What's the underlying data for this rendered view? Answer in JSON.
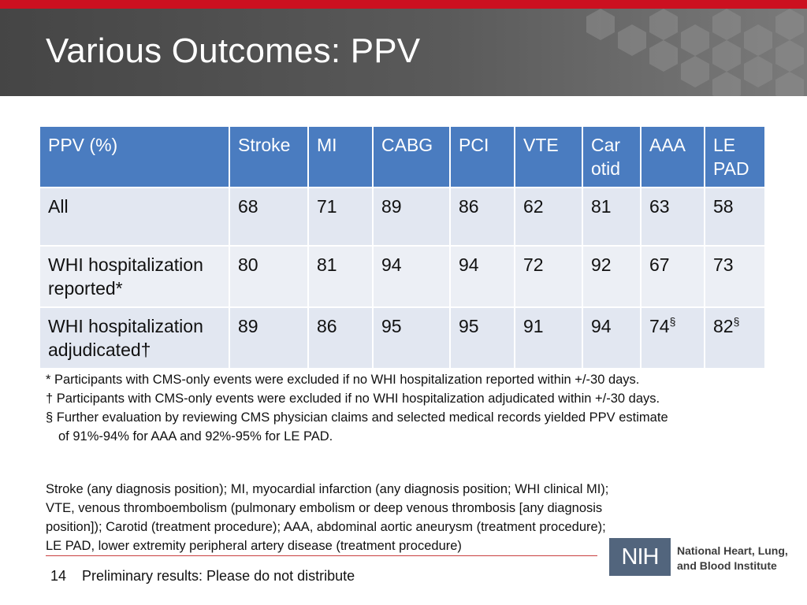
{
  "slide": {
    "title": "Various Outcomes:  PPV"
  },
  "table": {
    "headers": [
      "PPV (%)",
      "Stroke",
      "MI",
      "CABG",
      "PCI",
      "VTE",
      "Car otid",
      "AAA",
      "LE PAD"
    ],
    "rows": [
      {
        "label": "All",
        "values": [
          "68",
          "71",
          "89",
          "86",
          "62",
          "81",
          "63",
          "58"
        ]
      },
      {
        "label": "WHI hospitalization reported*",
        "values": [
          "80",
          "81",
          "94",
          "94",
          "72",
          "92",
          "67",
          "73"
        ]
      },
      {
        "label": "WHI hospitalization adjudicated†",
        "values": [
          "89",
          "86",
          "95",
          "95",
          "91",
          "94",
          "74",
          "82"
        ],
        "marks": {
          "aaa": "§",
          "lepad": "§"
        }
      }
    ]
  },
  "footnotes": {
    "star": "* Participants with CMS-only events were excluded if no WHI hospitalization reported within +/-30 days.",
    "dagger": "† Participants with CMS-only events were excluded if no WHI hospitalization adjudicated within +/-30 days.",
    "section_line1": "§ Further evaluation by reviewing CMS physician claims and selected medical records yielded PPV estimate",
    "section_line2": "of 91%-94% for AAA and 92%-95% for LE PAD."
  },
  "abbreviations": {
    "line1": "Stroke (any diagnosis position); MI, myocardial infarction (any diagnosis position; WHI clinical MI);",
    "line2": "VTE, venous thromboembolism (pulmonary embolism or deep venous thrombosis [any diagnosis",
    "line3": "position]); Carotid (treatment procedure); AAA, abdominal aortic aneurysm (treatment procedure);",
    "line4": "LE PAD, lower extremity peripheral artery disease (treatment procedure)"
  },
  "footer": {
    "page_number": "14",
    "text": "Preliminary results:  Please do not distribute"
  },
  "logo": {
    "nih": "NIH",
    "institute_line1": "National Heart, Lung,",
    "institute_line2": "and Blood Institute"
  },
  "colors": {
    "accent_red": "#cc1020",
    "header_gray": "#555555",
    "table_header_blue": "#4a7cc0",
    "table_row_light": "#e4e8f1",
    "nih_logo_blue": "#52657d"
  }
}
